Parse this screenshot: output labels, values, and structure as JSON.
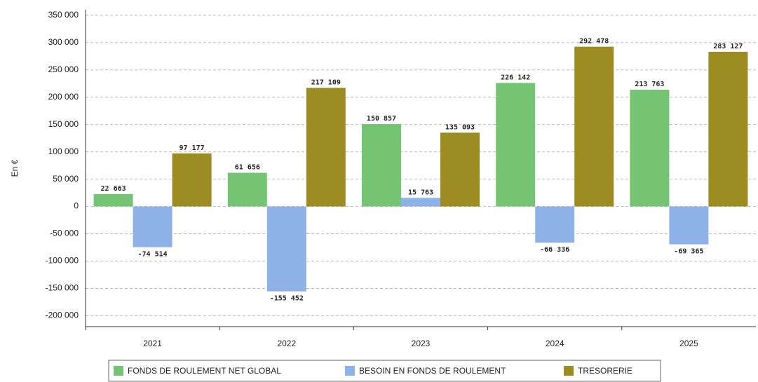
{
  "chart_data": {
    "type": "bar",
    "y_label": "En €",
    "categories": [
      "2021",
      "2022",
      "2023",
      "2024",
      "2025"
    ],
    "series": [
      {
        "name": "FONDS DE ROULEMENT NET GLOBAL",
        "color": "#74c474",
        "values": [
          22663,
          61656,
          150857,
          226142,
          213763
        ],
        "value_labels": [
          "22 663",
          "61 656",
          "150 857",
          "226 142",
          "213 763"
        ]
      },
      {
        "name": "BESOIN EN FONDS DE ROULEMENT",
        "color": "#8eb1e8",
        "values": [
          -74514,
          -155452,
          15763,
          -66336,
          -69365
        ],
        "value_labels": [
          "-74 514",
          "-155 452",
          "15 763",
          "-66 336",
          "-69 365"
        ]
      },
      {
        "name": "TRESORERIE",
        "color": "#9c8c22",
        "values": [
          97177,
          217109,
          135093,
          292478,
          283127
        ],
        "value_labels": [
          "97 177",
          "217 109",
          "135 093",
          "292 478",
          "283 127"
        ]
      }
    ],
    "ylim": [
      -220000,
      360000
    ],
    "yticks": [
      {
        "value": -200000,
        "label": "-200 000"
      },
      {
        "value": -150000,
        "label": "-150 000"
      },
      {
        "value": -100000,
        "label": "-100 000"
      },
      {
        "value": -50000,
        "label": "-50 000"
      },
      0,
      {
        "value": 50000,
        "label": "50 000"
      },
      {
        "value": 100000,
        "label": "100 000"
      },
      {
        "value": 150000,
        "label": "150 000"
      },
      {
        "value": 200000,
        "label": "200 000"
      },
      {
        "value": 250000,
        "label": "250 000"
      },
      {
        "value": 300000,
        "label": "300 000"
      },
      {
        "value": 350000,
        "label": "350 000"
      }
    ],
    "grid": true
  }
}
